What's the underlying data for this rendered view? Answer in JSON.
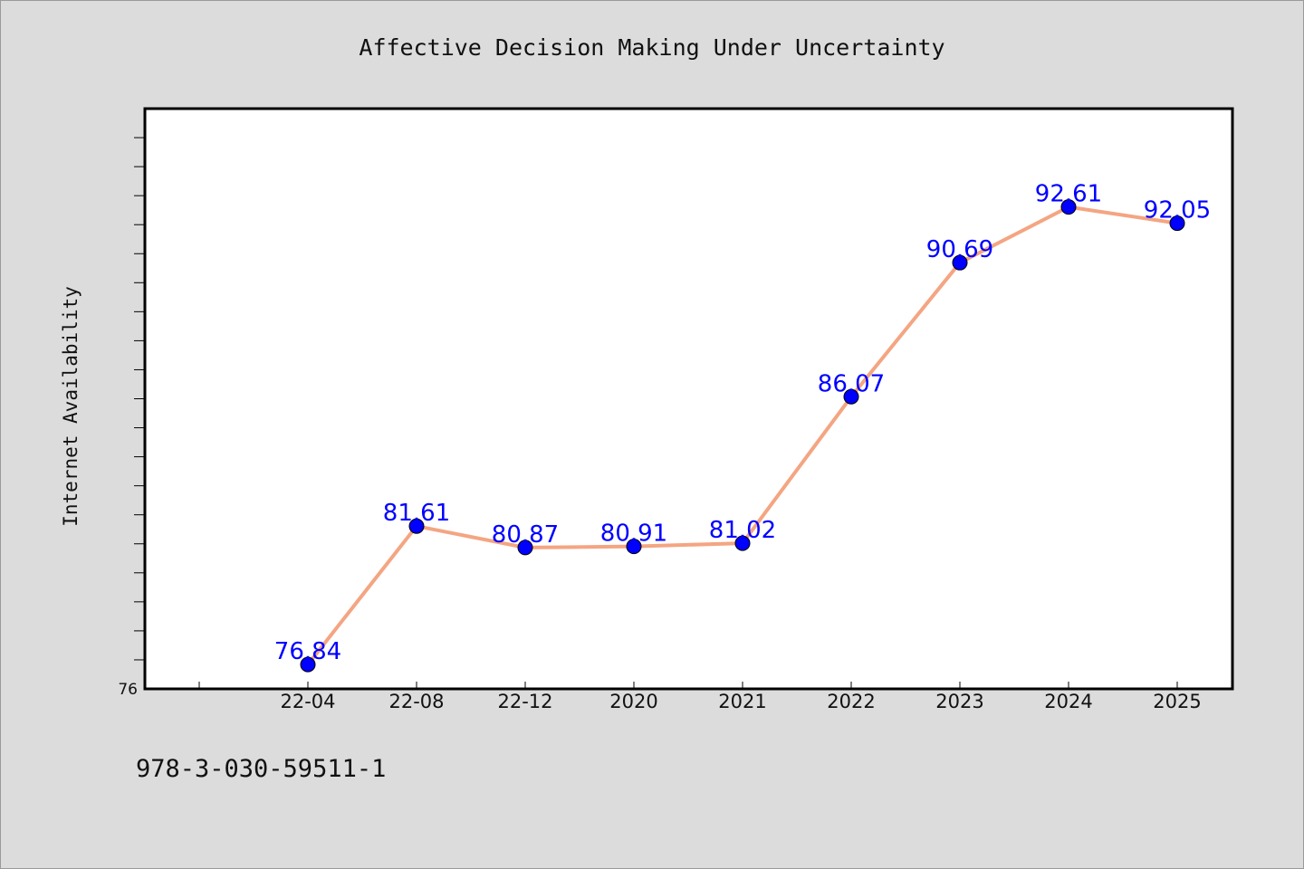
{
  "footer_text": "978-3-030-59511-1",
  "chart_data": {
    "type": "line",
    "title": "Affective Decision Making Under Uncertainty",
    "xlabel": "",
    "ylabel": "Internet Availability",
    "categories": [
      "22-04",
      "22-08",
      "22-12",
      "2020",
      "2021",
      "2022",
      "2023",
      "2024",
      "2025"
    ],
    "series": [
      {
        "values": [
          76.84,
          81.61,
          80.87,
          80.91,
          81.02,
          86.07,
          90.69,
          92.61,
          92.05
        ],
        "data_labels": [
          "76.84",
          "81.61",
          "80.87",
          "80.91",
          "81.02",
          "86.07",
          "90.69",
          "92.61",
          "92.05"
        ]
      }
    ],
    "ylim": [
      76,
      96
    ],
    "y_tick_labels": [
      "76"
    ],
    "grid": false,
    "legend": "none",
    "colors": {
      "line": "#f4a582",
      "marker": "#0000ff",
      "data_label": "#0000ff",
      "plot_background": "#ffffff",
      "page_background": "#dcdcdc"
    }
  }
}
